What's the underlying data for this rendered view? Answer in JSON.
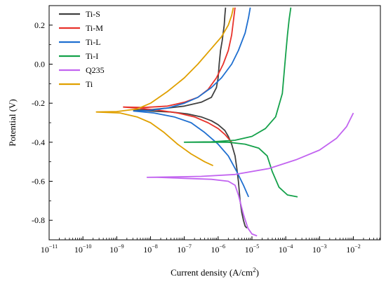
{
  "chart_data": {
    "type": "line",
    "title": "",
    "xlabel": "Current density (A/cm",
    "xlabel_sup": "2",
    "xlabel_end": ")",
    "ylabel": "Potential (V)",
    "xscale": "log",
    "xlim_exp": [
      -11,
      -1.2
    ],
    "ylim": [
      -0.9,
      0.3
    ],
    "x_tick_exponents": [
      -11,
      -10,
      -9,
      -8,
      -7,
      -6,
      -5,
      -4,
      -3,
      -2
    ],
    "x_tick_base": "10",
    "y_ticks": [
      -0.8,
      -0.6,
      -0.4,
      -0.2,
      0.0,
      0.2
    ],
    "y_tick_labels": [
      "-0.8",
      "-0.6",
      "-0.4",
      "-0.2",
      "0.0",
      "0.2"
    ],
    "legend_position": "top-left",
    "grid": false,
    "series": [
      {
        "name": "Ti-S",
        "color": "#404040",
        "points": [
          [
            -5.15,
            -0.84
          ],
          [
            -5.2,
            -0.83
          ],
          [
            -5.25,
            -0.8
          ],
          [
            -5.3,
            -0.76
          ],
          [
            -5.35,
            -0.7
          ],
          [
            -5.4,
            -0.6
          ],
          [
            -5.45,
            -0.53
          ],
          [
            -5.5,
            -0.47
          ],
          [
            -5.6,
            -0.41
          ],
          [
            -5.7,
            -0.37
          ],
          [
            -5.8,
            -0.34
          ],
          [
            -6.0,
            -0.31
          ],
          [
            -6.2,
            -0.29
          ],
          [
            -6.5,
            -0.27
          ],
          [
            -6.9,
            -0.255
          ],
          [
            -7.4,
            -0.245
          ],
          [
            -8.0,
            -0.24
          ],
          [
            -8.5,
            -0.235
          ],
          [
            -8.0,
            -0.233
          ],
          [
            -7.5,
            -0.225
          ],
          [
            -7.0,
            -0.215
          ],
          [
            -6.5,
            -0.195
          ],
          [
            -6.2,
            -0.17
          ],
          [
            -6.05,
            -0.12
          ],
          [
            -6.0,
            -0.07
          ],
          [
            -5.97,
            0.0
          ],
          [
            -5.93,
            0.07
          ],
          [
            -5.88,
            0.12
          ],
          [
            -5.85,
            0.16
          ],
          [
            -5.82,
            0.2
          ],
          [
            -5.8,
            0.25
          ],
          [
            -5.78,
            0.29
          ]
        ]
      },
      {
        "name": "Ti-M",
        "color": "#e8322b",
        "points": [
          [
            -5.6,
            -0.4
          ],
          [
            -5.8,
            -0.36
          ],
          [
            -6.0,
            -0.33
          ],
          [
            -6.3,
            -0.3
          ],
          [
            -6.7,
            -0.27
          ],
          [
            -7.2,
            -0.25
          ],
          [
            -7.8,
            -0.235
          ],
          [
            -8.4,
            -0.225
          ],
          [
            -8.8,
            -0.22
          ],
          [
            -8.2,
            -0.222
          ],
          [
            -7.5,
            -0.215
          ],
          [
            -7.0,
            -0.195
          ],
          [
            -6.6,
            -0.17
          ],
          [
            -6.3,
            -0.13
          ],
          [
            -6.05,
            -0.07
          ],
          [
            -5.85,
            0.0
          ],
          [
            -5.7,
            0.07
          ],
          [
            -5.6,
            0.15
          ],
          [
            -5.55,
            0.22
          ],
          [
            -5.5,
            0.29
          ]
        ]
      },
      {
        "name": "Ti-L",
        "color": "#1f6fd0",
        "points": [
          [
            -5.1,
            -0.68
          ],
          [
            -5.25,
            -0.62
          ],
          [
            -5.45,
            -0.55
          ],
          [
            -5.7,
            -0.47
          ],
          [
            -6.0,
            -0.41
          ],
          [
            -6.4,
            -0.35
          ],
          [
            -6.8,
            -0.3
          ],
          [
            -7.3,
            -0.27
          ],
          [
            -7.9,
            -0.25
          ],
          [
            -8.5,
            -0.24
          ],
          [
            -8.1,
            -0.238
          ],
          [
            -7.5,
            -0.225
          ],
          [
            -7.0,
            -0.2
          ],
          [
            -6.6,
            -0.17
          ],
          [
            -6.2,
            -0.12
          ],
          [
            -5.9,
            -0.07
          ],
          [
            -5.6,
            0.0
          ],
          [
            -5.4,
            0.07
          ],
          [
            -5.2,
            0.16
          ],
          [
            -5.1,
            0.24
          ],
          [
            -5.05,
            0.29
          ]
        ]
      },
      {
        "name": "Ti-I",
        "color": "#14a14a",
        "points": [
          [
            -3.65,
            -0.68
          ],
          [
            -3.95,
            -0.67
          ],
          [
            -4.2,
            -0.63
          ],
          [
            -4.4,
            -0.55
          ],
          [
            -4.55,
            -0.47
          ],
          [
            -4.8,
            -0.43
          ],
          [
            -5.2,
            -0.41
          ],
          [
            -5.7,
            -0.4
          ],
          [
            -6.3,
            -0.4
          ],
          [
            -7.0,
            -0.4
          ],
          [
            -6.2,
            -0.398
          ],
          [
            -5.5,
            -0.39
          ],
          [
            -5.0,
            -0.37
          ],
          [
            -4.6,
            -0.33
          ],
          [
            -4.3,
            -0.27
          ],
          [
            -4.1,
            -0.15
          ],
          [
            -4.05,
            -0.05
          ],
          [
            -4.0,
            0.05
          ],
          [
            -3.95,
            0.15
          ],
          [
            -3.9,
            0.23
          ],
          [
            -3.85,
            0.29
          ]
        ]
      },
      {
        "name": "Q235",
        "color": "#c264f0",
        "points": [
          [
            -4.85,
            -0.88
          ],
          [
            -5.0,
            -0.87
          ],
          [
            -5.12,
            -0.84
          ],
          [
            -5.25,
            -0.77
          ],
          [
            -5.4,
            -0.67
          ],
          [
            -5.5,
            -0.62
          ],
          [
            -5.7,
            -0.6
          ],
          [
            -6.2,
            -0.59
          ],
          [
            -7.0,
            -0.585
          ],
          [
            -7.8,
            -0.58
          ],
          [
            -8.1,
            -0.58
          ],
          [
            -7.5,
            -0.578
          ],
          [
            -6.5,
            -0.575
          ],
          [
            -5.5,
            -0.565
          ],
          [
            -4.5,
            -0.535
          ],
          [
            -3.7,
            -0.49
          ],
          [
            -3.0,
            -0.44
          ],
          [
            -2.5,
            -0.38
          ],
          [
            -2.2,
            -0.32
          ],
          [
            -2.0,
            -0.25
          ]
        ]
      },
      {
        "name": "Ti",
        "color": "#e0a000",
        "points": [
          [
            -6.15,
            -0.52
          ],
          [
            -6.4,
            -0.5
          ],
          [
            -6.8,
            -0.46
          ],
          [
            -7.2,
            -0.41
          ],
          [
            -7.6,
            -0.35
          ],
          [
            -8.0,
            -0.3
          ],
          [
            -8.4,
            -0.27
          ],
          [
            -8.9,
            -0.25
          ],
          [
            -9.6,
            -0.245
          ],
          [
            -9.0,
            -0.243
          ],
          [
            -8.4,
            -0.23
          ],
          [
            -8.0,
            -0.2
          ],
          [
            -7.5,
            -0.14
          ],
          [
            -7.0,
            -0.07
          ],
          [
            -6.6,
            0.0
          ],
          [
            -6.2,
            0.08
          ],
          [
            -5.9,
            0.14
          ],
          [
            -5.7,
            0.2
          ],
          [
            -5.6,
            0.25
          ],
          [
            -5.55,
            0.29
          ]
        ]
      }
    ]
  }
}
